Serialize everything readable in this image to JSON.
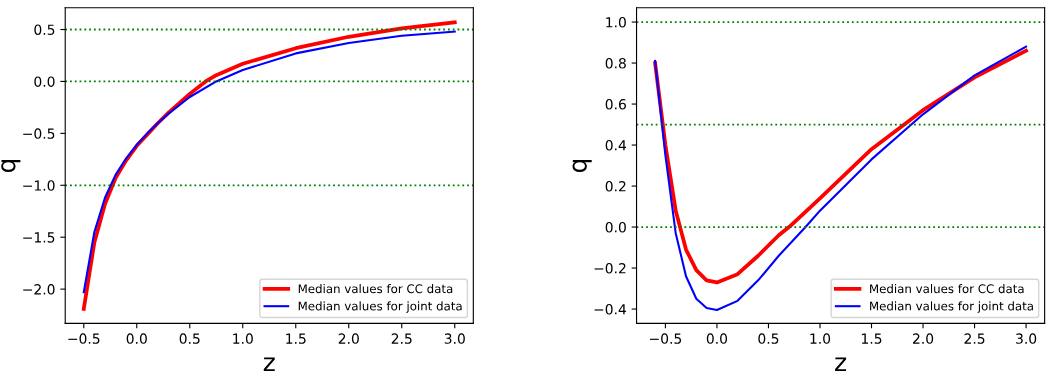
{
  "chart_data": [
    {
      "type": "line",
      "xlabel": "z",
      "ylabel": "q",
      "xlim": [
        -0.675,
        3.175
      ],
      "ylim": [
        -2.33,
        0.71
      ],
      "xticks": [
        {
          "value": -0.5,
          "label": "−0.5"
        },
        {
          "value": 0.0,
          "label": "0.0"
        },
        {
          "value": 0.5,
          "label": "0.5"
        },
        {
          "value": 1.0,
          "label": "1.0"
        },
        {
          "value": 1.5,
          "label": "1.5"
        },
        {
          "value": 2.0,
          "label": "2.0"
        },
        {
          "value": 2.5,
          "label": "2.5"
        },
        {
          "value": 3.0,
          "label": "3.0"
        }
      ],
      "yticks": [
        {
          "value": -2.0,
          "label": "−2.0"
        },
        {
          "value": -1.5,
          "label": "−1.5"
        },
        {
          "value": -1.0,
          "label": "−1.0"
        },
        {
          "value": -0.5,
          "label": "−0.5"
        },
        {
          "value": 0.0,
          "label": "0.0"
        },
        {
          "value": 0.5,
          "label": "0.5"
        }
      ],
      "grid": false,
      "legend": "lower right",
      "marker": "none",
      "line_style": "solid",
      "ref_lines": [
        {
          "axis": "y",
          "value": 0.5,
          "color": "#008000",
          "line_style": "dotted"
        },
        {
          "axis": "y",
          "value": 0.0,
          "color": "#008000",
          "line_style": "dotted"
        },
        {
          "axis": "y",
          "value": -1.0,
          "color": "#008000",
          "line_style": "dotted"
        }
      ],
      "series": [
        {
          "name": "Median values for CC data",
          "color": "#ff0000",
          "x": [
            -0.5,
            -0.4,
            -0.3,
            -0.2,
            -0.1,
            0.0,
            0.1,
            0.2,
            0.3,
            0.5,
            0.65,
            0.75,
            1.0,
            1.5,
            2.0,
            2.5,
            3.0
          ],
          "values": [
            -2.19,
            -1.55,
            -1.18,
            -0.93,
            -0.76,
            -0.62,
            -0.51,
            -0.4,
            -0.3,
            -0.12,
            0.0,
            0.06,
            0.17,
            0.32,
            0.43,
            0.51,
            0.57
          ]
        },
        {
          "name": "Median values for joint data",
          "color": "#0000ff",
          "x": [
            -0.5,
            -0.4,
            -0.3,
            -0.2,
            -0.1,
            0.0,
            0.1,
            0.2,
            0.3,
            0.5,
            0.75,
            1.0,
            1.5,
            2.0,
            2.5,
            3.0
          ],
          "values": [
            -2.03,
            -1.45,
            -1.12,
            -0.9,
            -0.74,
            -0.61,
            -0.5,
            -0.4,
            -0.31,
            -0.15,
            0.0,
            0.11,
            0.27,
            0.37,
            0.44,
            0.48
          ]
        }
      ]
    },
    {
      "type": "line",
      "xlabel": "z",
      "ylabel": "q",
      "xlim": [
        -0.78,
        3.18
      ],
      "ylim": [
        -0.47,
        1.07
      ],
      "xticks": [
        {
          "value": -0.5,
          "label": "−0.5"
        },
        {
          "value": 0.0,
          "label": "0.0"
        },
        {
          "value": 0.5,
          "label": "0.5"
        },
        {
          "value": 1.0,
          "label": "1.0"
        },
        {
          "value": 1.5,
          "label": "1.5"
        },
        {
          "value": 2.0,
          "label": "2.0"
        },
        {
          "value": 2.5,
          "label": "2.5"
        },
        {
          "value": 3.0,
          "label": "3.0"
        }
      ],
      "yticks": [
        {
          "value": -0.4,
          "label": "−0.4"
        },
        {
          "value": -0.2,
          "label": "−0.2"
        },
        {
          "value": 0.0,
          "label": "0.0"
        },
        {
          "value": 0.2,
          "label": "0.2"
        },
        {
          "value": 0.4,
          "label": "0.4"
        },
        {
          "value": 0.6,
          "label": "0.6"
        },
        {
          "value": 0.8,
          "label": "0.8"
        },
        {
          "value": 1.0,
          "label": "1.0"
        }
      ],
      "grid": false,
      "legend": "lower right",
      "marker": "none",
      "line_style": "solid",
      "ref_lines": [
        {
          "axis": "y",
          "value": 1.0,
          "color": "#008000",
          "line_style": "dotted"
        },
        {
          "axis": "y",
          "value": 0.5,
          "color": "#008000",
          "line_style": "dotted"
        },
        {
          "axis": "y",
          "value": 0.0,
          "color": "#008000",
          "line_style": "dotted"
        }
      ],
      "series": [
        {
          "name": "Median values for CC data",
          "color": "#ff0000",
          "x": [
            -0.6,
            -0.5,
            -0.4,
            -0.3,
            -0.2,
            -0.1,
            0.0,
            0.2,
            0.4,
            0.6,
            0.7,
            1.0,
            1.5,
            2.0,
            2.5,
            3.0
          ],
          "values": [
            0.8,
            0.4,
            0.08,
            -0.11,
            -0.21,
            -0.26,
            -0.27,
            -0.23,
            -0.14,
            -0.04,
            0.0,
            0.14,
            0.38,
            0.57,
            0.73,
            0.86
          ]
        },
        {
          "name": "Median values for joint data",
          "color": "#0000ff",
          "x": [
            -0.6,
            -0.5,
            -0.4,
            -0.3,
            -0.2,
            -0.1,
            0.0,
            0.2,
            0.4,
            0.6,
            0.86,
            1.0,
            1.5,
            2.0,
            2.5,
            3.0
          ],
          "values": [
            0.81,
            0.35,
            -0.03,
            -0.24,
            -0.35,
            -0.395,
            -0.405,
            -0.36,
            -0.26,
            -0.14,
            0.0,
            0.08,
            0.33,
            0.55,
            0.74,
            0.88
          ]
        }
      ]
    }
  ]
}
